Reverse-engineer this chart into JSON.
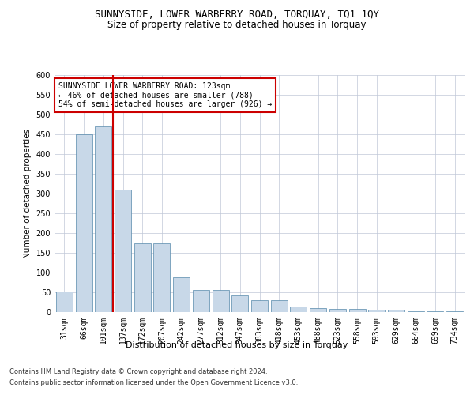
{
  "title": "SUNNYSIDE, LOWER WARBERRY ROAD, TORQUAY, TQ1 1QY",
  "subtitle": "Size of property relative to detached houses in Torquay",
  "xlabel": "Distribution of detached houses by size in Torquay",
  "ylabel": "Number of detached properties",
  "categories": [
    "31sqm",
    "66sqm",
    "101sqm",
    "137sqm",
    "172sqm",
    "207sqm",
    "242sqm",
    "277sqm",
    "312sqm",
    "347sqm",
    "383sqm",
    "418sqm",
    "453sqm",
    "488sqm",
    "523sqm",
    "558sqm",
    "593sqm",
    "629sqm",
    "664sqm",
    "699sqm",
    "734sqm"
  ],
  "values": [
    53,
    450,
    470,
    310,
    175,
    175,
    88,
    57,
    57,
    43,
    30,
    30,
    15,
    10,
    8,
    8,
    7,
    7,
    3,
    3,
    3
  ],
  "bar_color": "#c8d8e8",
  "bar_edge_color": "#5588aa",
  "vline_x_index": 2,
  "vline_color": "#cc0000",
  "ylim": [
    0,
    600
  ],
  "yticks": [
    0,
    50,
    100,
    150,
    200,
    250,
    300,
    350,
    400,
    450,
    500,
    550,
    600
  ],
  "annotation_text": "SUNNYSIDE LOWER WARBERRY ROAD: 123sqm\n← 46% of detached houses are smaller (788)\n54% of semi-detached houses are larger (926) →",
  "annotation_box_color": "#ffffff",
  "annotation_box_edge": "#cc0000",
  "footer_line1": "Contains HM Land Registry data © Crown copyright and database right 2024.",
  "footer_line2": "Contains public sector information licensed under the Open Government Licence v3.0.",
  "bg_color": "#ffffff",
  "grid_color": "#c0c8d8",
  "title_fontsize": 9,
  "subtitle_fontsize": 8.5,
  "axis_label_fontsize": 8,
  "tick_fontsize": 7,
  "ylabel_fontsize": 7.5
}
